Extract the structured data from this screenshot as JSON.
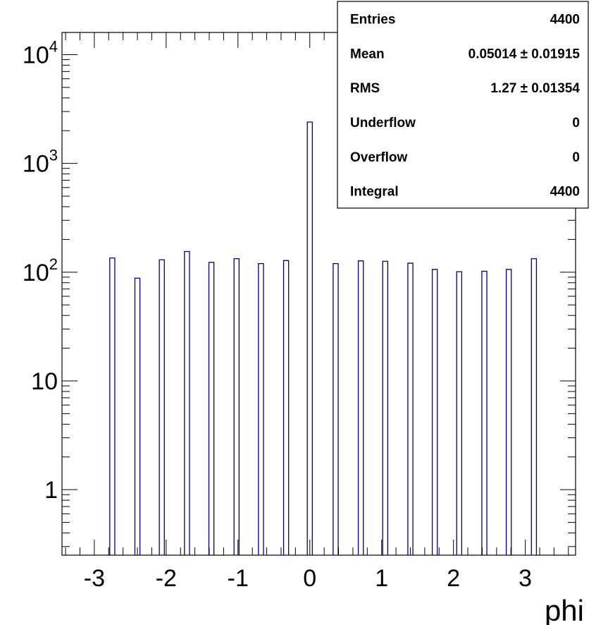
{
  "chart_data": {
    "type": "bar",
    "subtype": "histogram",
    "xlabel": "phi",
    "ylabel": "",
    "y_scale": "log",
    "xlim": [
      -3.45,
      3.7
    ],
    "ylim": [
      0.25,
      16000
    ],
    "x_ticks": [
      -3,
      -2,
      -1,
      0,
      1,
      2,
      3
    ],
    "y_ticks": [
      {
        "value": 1,
        "base": "1",
        "exp": ""
      },
      {
        "value": 10,
        "base": "10",
        "exp": ""
      },
      {
        "value": 100,
        "base": "10",
        "exp": "2"
      },
      {
        "value": 1000,
        "base": "10",
        "exp": "3"
      },
      {
        "value": 10000,
        "base": "10",
        "exp": "4"
      }
    ],
    "bin_width": 0.07,
    "line_color": "#000080",
    "bins": [
      {
        "x": -2.75,
        "value": 135
      },
      {
        "x": -2.4,
        "value": 88
      },
      {
        "x": -2.06,
        "value": 130
      },
      {
        "x": -1.71,
        "value": 155
      },
      {
        "x": -1.37,
        "value": 123
      },
      {
        "x": -1.02,
        "value": 133
      },
      {
        "x": -0.68,
        "value": 120
      },
      {
        "x": -0.33,
        "value": 128
      },
      {
        "x": 0.0,
        "value": 2400
      },
      {
        "x": 0.36,
        "value": 120
      },
      {
        "x": 0.71,
        "value": 127
      },
      {
        "x": 1.05,
        "value": 126
      },
      {
        "x": 1.4,
        "value": 121
      },
      {
        "x": 1.74,
        "value": 106
      },
      {
        "x": 2.08,
        "value": 101
      },
      {
        "x": 2.43,
        "value": 102
      },
      {
        "x": 2.77,
        "value": 106
      },
      {
        "x": 3.12,
        "value": 133
      }
    ],
    "stats": [
      {
        "label": "Entries",
        "value": "4400"
      },
      {
        "label": "Mean",
        "value": "0.05014 ± 0.01915"
      },
      {
        "label": "RMS",
        "value": "1.27 ± 0.01354"
      },
      {
        "label": "Underflow",
        "value": "0"
      },
      {
        "label": "Overflow",
        "value": "0"
      },
      {
        "label": "Integral",
        "value": "4400"
      }
    ]
  }
}
